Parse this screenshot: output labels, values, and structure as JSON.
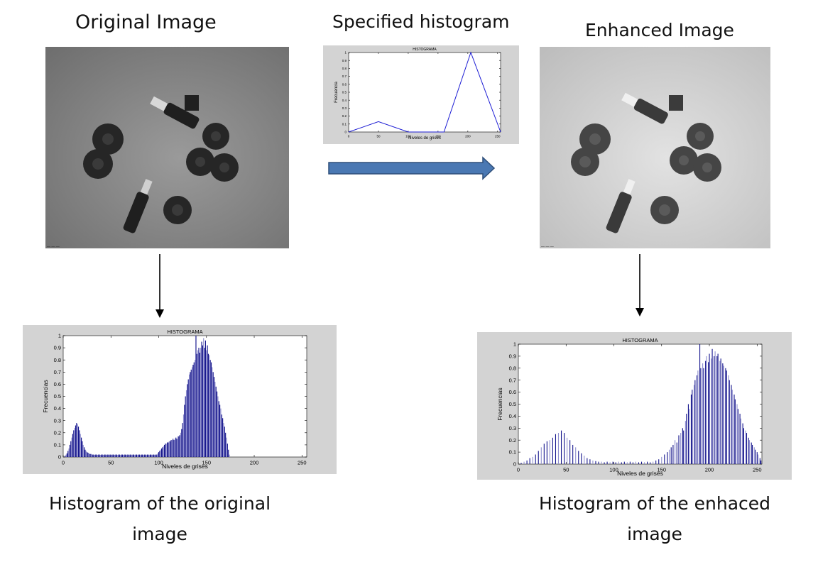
{
  "labels": {
    "original": "Original Image",
    "specified": "Specified histogram",
    "enhanced": "Enhanced Image",
    "cap_orig_1": "Histogram of the original",
    "cap_orig_2": "image",
    "cap_enh_1": "Histogram of the enhaced",
    "cap_enh_2": "image"
  },
  "colors": {
    "plot_bg": "#d3d3d3",
    "bar_dark": "#14148c",
    "bar_light": "#8f8fcf",
    "line": "#1c1cd4",
    "arrow": "#4a78b3",
    "arrow_stroke": "#2f4f7a",
    "photo_orig_bg": "#8c8c8c",
    "photo_enh_bg": "#cdcdcd",
    "object_orig": "#2b2b2b",
    "object_enh": "#4a4a4a"
  },
  "photo_original": {
    "scale_text": "— — —"
  },
  "photo_enhanced": {
    "scale_text": "— — —"
  },
  "chart_data": [
    {
      "id": "specified",
      "type": "line",
      "title": "HISTOGRAMA",
      "xlabel": "Niveles de grises",
      "ylabel": "Frecuencia",
      "xlim": [
        0,
        255
      ],
      "ylim": [
        0,
        1
      ],
      "xticks": [
        0,
        50,
        100,
        150,
        200,
        250
      ],
      "yticks": [
        0,
        0.1,
        0.2,
        0.3,
        0.4,
        0.5,
        0.6,
        0.7,
        0.8,
        0.9,
        1
      ],
      "x": [
        0,
        50,
        100,
        160,
        205,
        255
      ],
      "y": [
        0,
        0.13,
        0,
        0,
        1,
        0
      ]
    },
    {
      "id": "original",
      "type": "bar",
      "title": "HISTOGRAMA",
      "xlabel": "Niveles de grises",
      "ylabel": "Frecuencias",
      "xlim": [
        0,
        255
      ],
      "ylim": [
        0,
        1
      ],
      "xticks": [
        0,
        50,
        100,
        150,
        200,
        250
      ],
      "yticks": [
        0,
        0.1,
        0.2,
        0.3,
        0.4,
        0.5,
        0.6,
        0.7,
        0.8,
        0.9,
        1
      ],
      "bins": {
        "start": 2,
        "step": 1
      },
      "values": [
        0.01,
        0.02,
        0.03,
        0.05,
        0.07,
        0.1,
        0.13,
        0.16,
        0.19,
        0.22,
        0.24,
        0.26,
        0.28,
        0.27,
        0.25,
        0.22,
        0.19,
        0.16,
        0.13,
        0.1,
        0.08,
        0.06,
        0.05,
        0.04,
        0.035,
        0.03,
        0.025,
        0.025,
        0.02,
        0.02,
        0.02,
        0.018,
        0.02,
        0.02,
        0.018,
        0.02,
        0.02,
        0.018,
        0.02,
        0.02,
        0.018,
        0.02,
        0.02,
        0.018,
        0.02,
        0.02,
        0.018,
        0.02,
        0.02,
        0.018,
        0.02,
        0.02,
        0.018,
        0.02,
        0.02,
        0.018,
        0.02,
        0.02,
        0.018,
        0.02,
        0.02,
        0.018,
        0.02,
        0.02,
        0.018,
        0.02,
        0.02,
        0.018,
        0.02,
        0.02,
        0.018,
        0.02,
        0.02,
        0.018,
        0.02,
        0.02,
        0.018,
        0.02,
        0.02,
        0.018,
        0.02,
        0.02,
        0.018,
        0.02,
        0.02,
        0.018,
        0.02,
        0.02,
        0.018,
        0.02,
        0.02,
        0.018,
        0.02,
        0.02,
        0.018,
        0.02,
        0.02,
        0.03,
        0.04,
        0.05,
        0.06,
        0.07,
        0.08,
        0.09,
        0.1,
        0.11,
        0.11,
        0.12,
        0.12,
        0.13,
        0.13,
        0.14,
        0.14,
        0.15,
        0.14,
        0.15,
        0.16,
        0.15,
        0.17,
        0.17,
        0.18,
        0.2,
        0.23,
        0.28,
        0.35,
        0.43,
        0.5,
        0.55,
        0.6,
        0.64,
        0.68,
        0.7,
        0.72,
        0.74,
        0.76,
        0.78,
        0.8,
        1.0,
        0.85,
        0.88,
        0.9,
        0.86,
        0.9,
        0.95,
        0.92,
        0.98,
        0.9,
        0.96,
        0.88,
        0.92,
        0.85,
        0.84,
        0.8,
        0.78,
        0.74,
        0.7,
        0.66,
        0.62,
        0.58,
        0.54,
        0.5,
        0.46,
        0.43,
        0.4,
        0.35,
        0.32,
        0.28,
        0.25,
        0.2,
        0.16,
        0.11,
        0.06,
        0.02
      ]
    },
    {
      "id": "enhanced",
      "type": "bar",
      "title": "HISTOGRAMA",
      "xlabel": "Niveles de grises",
      "ylabel": "Frecuencias",
      "xlim": [
        0,
        255
      ],
      "ylim": [
        0,
        1
      ],
      "xticks": [
        0,
        50,
        100,
        150,
        200,
        250
      ],
      "yticks": [
        0,
        0.1,
        0.2,
        0.3,
        0.4,
        0.5,
        0.6,
        0.7,
        0.8,
        0.9,
        1
      ],
      "x": [
        3,
        6,
        9,
        12,
        15,
        18,
        21,
        24,
        27,
        30,
        33,
        36,
        39,
        42,
        45,
        48,
        51,
        54,
        57,
        60,
        63,
        66,
        69,
        72,
        75,
        78,
        81,
        84,
        87,
        90,
        93,
        96,
        99,
        102,
        105,
        108,
        111,
        114,
        117,
        120,
        123,
        126,
        129,
        132,
        135,
        138,
        141,
        144,
        147,
        150,
        153,
        156,
        158,
        160,
        162,
        164,
        166,
        168,
        170,
        172,
        173,
        175,
        176,
        178,
        179,
        181,
        182,
        184,
        185,
        187,
        188,
        190,
        191,
        193,
        194,
        196,
        197,
        199,
        200,
        202,
        203,
        205,
        206,
        208,
        209,
        211,
        212,
        214,
        215,
        217,
        218,
        220,
        221,
        223,
        224,
        226,
        227,
        229,
        230,
        232,
        233,
        235,
        236,
        238,
        239,
        241,
        242,
        244,
        245,
        247,
        248,
        250,
        251,
        253,
        254
      ],
      "values": [
        0.01,
        0.02,
        0.03,
        0.05,
        0.06,
        0.08,
        0.11,
        0.14,
        0.17,
        0.19,
        0.2,
        0.22,
        0.25,
        0.26,
        0.28,
        0.26,
        0.22,
        0.2,
        0.16,
        0.14,
        0.11,
        0.09,
        0.07,
        0.05,
        0.04,
        0.03,
        0.025,
        0.02,
        0.02,
        0.015,
        0.02,
        0.015,
        0.02,
        0.015,
        0.02,
        0.015,
        0.02,
        0.015,
        0.02,
        0.015,
        0.02,
        0.015,
        0.02,
        0.015,
        0.02,
        0.015,
        0.02,
        0.03,
        0.04,
        0.06,
        0.08,
        0.1,
        0.12,
        0.14,
        0.16,
        0.2,
        0.18,
        0.24,
        0.26,
        0.3,
        0.28,
        0.36,
        0.42,
        0.5,
        0.46,
        0.58,
        0.62,
        0.66,
        0.7,
        0.74,
        0.78,
        1.0,
        0.8,
        0.84,
        0.8,
        0.86,
        0.9,
        0.85,
        0.92,
        0.88,
        0.96,
        0.9,
        0.94,
        0.9,
        0.92,
        0.86,
        0.88,
        0.84,
        0.82,
        0.8,
        0.78,
        0.74,
        0.7,
        0.66,
        0.62,
        0.58,
        0.54,
        0.5,
        0.46,
        0.42,
        0.38,
        0.34,
        0.3,
        0.28,
        0.26,
        0.22,
        0.2,
        0.18,
        0.16,
        0.14,
        0.12,
        0.1,
        0.08,
        0.05,
        0.03
      ]
    }
  ]
}
